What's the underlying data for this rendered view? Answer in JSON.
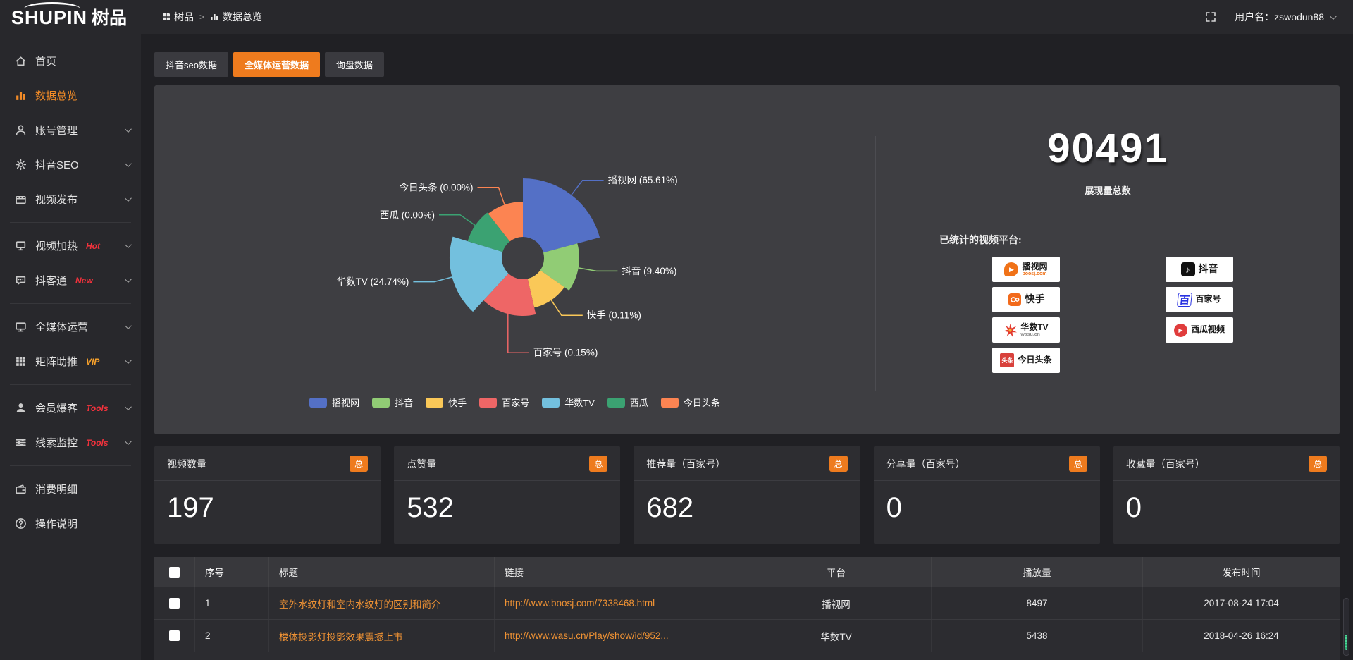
{
  "topbar": {
    "logo_en": "SHUPIN",
    "logo_cn": "树品",
    "breadcrumb": {
      "root": "树品",
      "separator": ">",
      "current": "数据总览"
    },
    "user_label": "用户名：zswodun88"
  },
  "sidebar": {
    "items": [
      {
        "icon": "home-icon",
        "label": "首页"
      },
      {
        "icon": "chart-icon",
        "label": "数据总览",
        "active": true
      },
      {
        "icon": "user-icon",
        "label": "账号管理",
        "chevron": true
      },
      {
        "icon": "gear-icon",
        "label": "抖音SEO",
        "chevron": true
      },
      {
        "icon": "video-icon",
        "label": "视频发布",
        "chevron": true
      },
      {
        "icon": "screen-icon",
        "label": "视频加热",
        "badge": "Hot",
        "chevron": true
      },
      {
        "icon": "chat-icon",
        "label": "抖客通",
        "badge": "New",
        "chevron": true
      },
      {
        "icon": "monitor-icon",
        "label": "全媒体运营",
        "chevron": true
      },
      {
        "icon": "grid-icon",
        "label": "矩阵助推",
        "badge": "VIP",
        "chevron": true
      },
      {
        "icon": "member-icon",
        "label": "会员爆客",
        "badge": "Tools",
        "chevron": true
      },
      {
        "icon": "sliders-icon",
        "label": "线索监控",
        "badge": "Tools",
        "chevron": true
      },
      {
        "icon": "wallet-icon",
        "label": "消费明细"
      },
      {
        "icon": "help-icon",
        "label": "操作说明"
      }
    ]
  },
  "tabs": [
    {
      "label": "抖音seo数据",
      "active": false
    },
    {
      "label": "全媒体运营数据",
      "active": true
    },
    {
      "label": "询盘数据",
      "active": false
    }
  ],
  "chart_data": {
    "type": "pie",
    "variant": "nightingale-rose",
    "inner_radius": 30,
    "legend_position": "bottom",
    "label_format": "{name} ({percent}%)",
    "series": [
      {
        "name": "播视网",
        "percent": "65.61",
        "color": "#5470c6",
        "sweep_deg": 75,
        "outer_radius": 113
      },
      {
        "name": "抖音",
        "percent": "9.40",
        "color": "#91cc75",
        "sweep_deg": 50,
        "outer_radius": 80
      },
      {
        "name": "快手",
        "percent": "0.11",
        "color": "#fac858",
        "sweep_deg": 42,
        "outer_radius": 72
      },
      {
        "name": "百家号",
        "percent": "0.15",
        "color": "#ee6666",
        "sweep_deg": 56,
        "outer_radius": 82
      },
      {
        "name": "华数TV",
        "percent": "24.74",
        "color": "#73c0de",
        "sweep_deg": 64,
        "outer_radius": 104
      },
      {
        "name": "西瓜",
        "percent": "0.00",
        "color": "#3ba272",
        "sweep_deg": 35,
        "outer_radius": 82
      },
      {
        "name": "今日头条",
        "percent": "0.00",
        "color": "#fc8452",
        "sweep_deg": 38,
        "outer_radius": 80
      }
    ]
  },
  "summary": {
    "total_value": "90491",
    "total_label": "展现量总数",
    "platforms_label": "已统计的视频平台:",
    "platforms": [
      {
        "name": "播视网",
        "sub": "boosj.com"
      },
      {
        "name": "快手",
        "sub": ""
      },
      {
        "name": "华数TV",
        "sub": "wasu.cn"
      },
      {
        "name": "今日头条",
        "icon_text": "头条"
      },
      {
        "name": "抖音",
        "sub": ""
      },
      {
        "name": "百家号",
        "icon_text": "百"
      },
      {
        "name": "西瓜视频",
        "sub": ""
      }
    ]
  },
  "stat_cards": [
    {
      "title": "视频数量",
      "badge": "总",
      "value": "197"
    },
    {
      "title": "点赞量",
      "badge": "总",
      "value": "532"
    },
    {
      "title": "推荐量（百家号）",
      "badge": "总",
      "value": "682"
    },
    {
      "title": "分享量（百家号）",
      "badge": "总",
      "value": "0"
    },
    {
      "title": "收藏量（百家号）",
      "badge": "总",
      "value": "0"
    }
  ],
  "table": {
    "headers": [
      "序号",
      "标题",
      "链接",
      "平台",
      "播放量",
      "发布时间"
    ],
    "rows": [
      {
        "index": "1",
        "title": "室外水纹灯和室内水纹灯的区别和简介",
        "link": "http://www.boosj.com/7338468.html",
        "platform": "播视网",
        "plays": "8497",
        "published": "2017-08-24 17:04"
      },
      {
        "index": "2",
        "title": "楼体投影灯投影效果震撼上市",
        "link": "http://www.wasu.cn/Play/show/id/952...",
        "platform": "华数TV",
        "plays": "5438",
        "published": "2018-04-26 16:24"
      }
    ]
  }
}
